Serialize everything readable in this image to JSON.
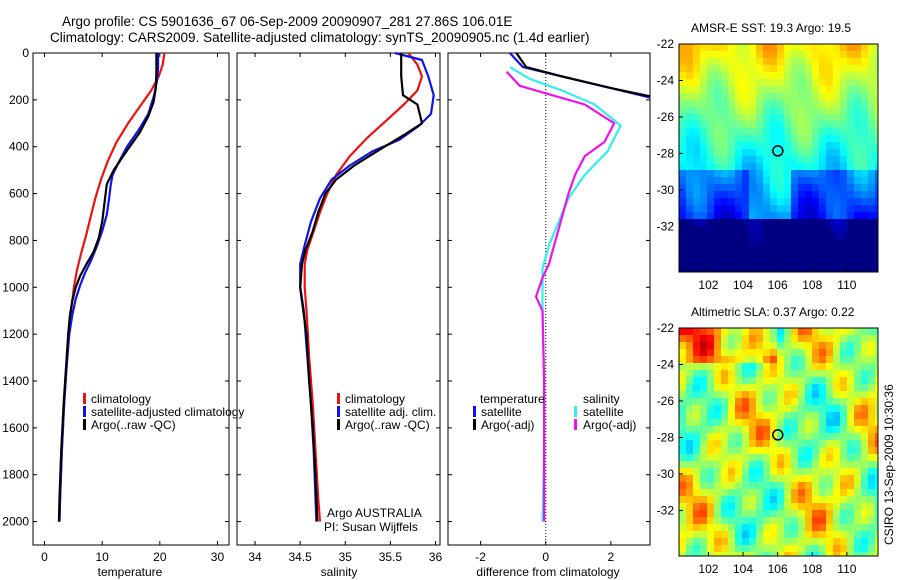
{
  "header": {
    "line1": "Argo profile: CS 5901636_67 06-Sep-2009 20090907_281 27.86S 106.01E",
    "line2": "Climatology: CARS2009. Satellite-adjusted climatology: synTS_20090905.nc (1.4d earlier)"
  },
  "credit": "CSIRO 13-Sep-2009 10:30:36",
  "colors": {
    "red": "#ee1111",
    "blue": "#1111ee",
    "black": "#000000",
    "cyan": "#33eeee",
    "magenta": "#ee11ee"
  },
  "chart_data": [
    {
      "type": "line",
      "id": "temperature",
      "xlabel": "temperature",
      "ylabel": "",
      "xlim": [
        -2,
        32
      ],
      "ylim": [
        0,
        2100
      ],
      "xticks": [
        0,
        10,
        20,
        30
      ],
      "yticks": [
        0,
        200,
        400,
        600,
        800,
        1000,
        1200,
        1400,
        1600,
        1800,
        2000
      ],
      "legend": [
        "climatology",
        "satellite-adjusted climatology",
        "Argo(..raw -QC)"
      ],
      "series": [
        {
          "name": "climatology",
          "color": "red",
          "points": [
            [
              20.8,
              0
            ],
            [
              20.5,
              50
            ],
            [
              19.8,
              100
            ],
            [
              18.5,
              160
            ],
            [
              16.5,
              230
            ],
            [
              14.5,
              300
            ],
            [
              12.5,
              380
            ],
            [
              11,
              460
            ],
            [
              9.8,
              540
            ],
            [
              8.8,
              620
            ],
            [
              8,
              700
            ],
            [
              7.2,
              780
            ],
            [
              6.3,
              860
            ],
            [
              5.6,
              930
            ],
            [
              5.1,
              1000
            ],
            [
              4.6,
              1100
            ],
            [
              4.2,
              1200
            ],
            [
              3.8,
              1350
            ],
            [
              3.4,
              1500
            ],
            [
              3,
              1700
            ],
            [
              2.7,
              1900
            ],
            [
              2.6,
              2000
            ]
          ]
        },
        {
          "name": "satellite-adjusted climatology",
          "color": "blue",
          "points": [
            [
              19.7,
              0
            ],
            [
              19.7,
              60
            ],
            [
              19.5,
              120
            ],
            [
              19,
              180
            ],
            [
              18,
              260
            ],
            [
              16.3,
              330
            ],
            [
              14.3,
              400
            ],
            [
              12.8,
              470
            ],
            [
              11.8,
              520
            ],
            [
              11.5,
              560
            ],
            [
              11.2,
              620
            ],
            [
              10.8,
              690
            ],
            [
              10,
              760
            ],
            [
              9,
              830
            ],
            [
              8,
              890
            ],
            [
              7,
              940
            ],
            [
              6.2,
              990
            ],
            [
              5.4,
              1050
            ],
            [
              4.8,
              1120
            ],
            [
              4.3,
              1200
            ],
            [
              3.8,
              1350
            ],
            [
              3.4,
              1500
            ],
            [
              3,
              1700
            ],
            [
              2.7,
              1900
            ],
            [
              2.6,
              2000
            ]
          ]
        },
        {
          "name": "Argo(..raw -QC)",
          "color": "black",
          "points": [
            [
              19.4,
              0
            ],
            [
              19.4,
              80
            ],
            [
              19.3,
              150
            ],
            [
              18.9,
              210
            ],
            [
              18,
              270
            ],
            [
              16.5,
              340
            ],
            [
              14.2,
              420
            ],
            [
              12,
              500
            ],
            [
              10.8,
              560
            ],
            [
              10.4,
              640
            ],
            [
              10,
              720
            ],
            [
              9.4,
              790
            ],
            [
              8.5,
              850
            ],
            [
              7.3,
              900
            ],
            [
              6.2,
              950
            ],
            [
              5.4,
              1000
            ],
            [
              4.8,
              1060
            ],
            [
              4.4,
              1120
            ],
            [
              4.1,
              1200
            ],
            [
              3.7,
              1350
            ],
            [
              3.3,
              1500
            ],
            [
              2.9,
              1700
            ],
            [
              2.6,
              1900
            ],
            [
              2.5,
              2000
            ]
          ]
        }
      ]
    },
    {
      "type": "line",
      "id": "salinity",
      "xlabel": "salinity",
      "ylabel": "",
      "xlim": [
        33.8,
        36.05
      ],
      "ylim": [
        0,
        2100
      ],
      "xticks": [
        34,
        34.5,
        35,
        35.5,
        36
      ],
      "legend": [
        "climatology",
        "satellite adj. clim.",
        "Argo(..raw -QC)"
      ],
      "annotations": [
        "Argo AUSTRALIA",
        "PI: Susan Wijffels"
      ],
      "series": [
        {
          "name": "climatology",
          "color": "red",
          "points": [
            [
              35.7,
              0
            ],
            [
              35.8,
              50
            ],
            [
              35.85,
              100
            ],
            [
              35.8,
              160
            ],
            [
              35.65,
              220
            ],
            [
              35.45,
              290
            ],
            [
              35.25,
              360
            ],
            [
              35.05,
              440
            ],
            [
              34.9,
              520
            ],
            [
              34.8,
              600
            ],
            [
              34.72,
              680
            ],
            [
              34.65,
              760
            ],
            [
              34.58,
              840
            ],
            [
              34.55,
              900
            ],
            [
              34.55,
              1000
            ],
            [
              34.57,
              1100
            ],
            [
              34.6,
              1300
            ],
            [
              34.64,
              1500
            ],
            [
              34.67,
              1700
            ],
            [
              34.7,
              1900
            ],
            [
              34.72,
              2000
            ]
          ]
        },
        {
          "name": "satellite adj. clim.",
          "color": "blue",
          "points": [
            [
              35.55,
              0
            ],
            [
              35.85,
              30
            ],
            [
              35.92,
              100
            ],
            [
              35.98,
              180
            ],
            [
              35.95,
              260
            ],
            [
              35.82,
              310
            ],
            [
              35.6,
              370
            ],
            [
              35.3,
              420
            ],
            [
              35.05,
              480
            ],
            [
              34.85,
              540
            ],
            [
              34.72,
              620
            ],
            [
              34.62,
              720
            ],
            [
              34.55,
              820
            ],
            [
              34.5,
              900
            ],
            [
              34.5,
              1000
            ],
            [
              34.54,
              1100
            ],
            [
              34.58,
              1300
            ],
            [
              34.62,
              1500
            ],
            [
              34.65,
              1700
            ],
            [
              34.67,
              1900
            ],
            [
              34.68,
              2000
            ]
          ]
        },
        {
          "name": "Argo(..raw -QC)",
          "color": "black",
          "points": [
            [
              35.62,
              0
            ],
            [
              35.62,
              100
            ],
            [
              35.64,
              180
            ],
            [
              35.8,
              220
            ],
            [
              35.85,
              300
            ],
            [
              35.65,
              350
            ],
            [
              35.35,
              420
            ],
            [
              35.1,
              480
            ],
            [
              34.9,
              540
            ],
            [
              34.78,
              600
            ],
            [
              34.7,
              680
            ],
            [
              34.64,
              760
            ],
            [
              34.56,
              840
            ],
            [
              34.52,
              900
            ],
            [
              34.5,
              1000
            ],
            [
              34.52,
              1060
            ],
            [
              34.57,
              1200
            ],
            [
              34.6,
              1400
            ],
            [
              34.64,
              1600
            ],
            [
              34.67,
              1800
            ],
            [
              34.69,
              2000
            ]
          ]
        }
      ]
    },
    {
      "type": "line",
      "id": "difference",
      "xlabel": "difference from climatology",
      "ylabel": "",
      "xlim": [
        -3,
        3.2
      ],
      "ylim": [
        0,
        2100
      ],
      "xticks": [
        -2,
        0,
        2
      ],
      "legend_groups": [
        {
          "title": "temperature",
          "items": [
            "satellite",
            "Argo(-adj)"
          ]
        },
        {
          "title": "salinity",
          "items": [
            "satellite",
            "Argo(-adj)"
          ]
        }
      ],
      "series": [
        {
          "name": "temperature satellite",
          "color": "blue",
          "points": [
            [
              -1.1,
              0
            ],
            [
              -0.7,
              60
            ],
            [
              0.5,
              100
            ],
            [
              2,
              150
            ],
            [
              3.2,
              190
            ]
          ]
        },
        {
          "name": "temperature Argo(-adj)",
          "color": "black",
          "points": [
            [
              -0.9,
              0
            ],
            [
              -0.6,
              60
            ],
            [
              0.5,
              100
            ],
            [
              2,
              150
            ],
            [
              3.2,
              185
            ]
          ]
        },
        {
          "name": "salinity satellite",
          "color": "cyan",
          "points": [
            [
              -1.1,
              60
            ],
            [
              -0.5,
              110
            ],
            [
              0.5,
              160
            ],
            [
              1.5,
              220
            ],
            [
              2.3,
              310
            ],
            [
              1.9,
              420
            ],
            [
              1.2,
              520
            ],
            [
              0.7,
              620
            ],
            [
              0.4,
              720
            ],
            [
              0.1,
              820
            ],
            [
              -0.1,
              920
            ],
            [
              -0.1,
              1100
            ],
            [
              -0.05,
              1400
            ],
            [
              -0.05,
              1700
            ],
            [
              -0.1,
              2000
            ]
          ]
        },
        {
          "name": "salinity Argo(-adj)",
          "color": "magenta",
          "points": [
            [
              -1.2,
              80
            ],
            [
              -0.8,
              140
            ],
            [
              0.2,
              180
            ],
            [
              1.2,
              220
            ],
            [
              2.1,
              300
            ],
            [
              1.8,
              380
            ],
            [
              1.2,
              440
            ],
            [
              0.9,
              520
            ],
            [
              0.7,
              600
            ],
            [
              0.5,
              700
            ],
            [
              0.3,
              800
            ],
            [
              0.1,
              900
            ],
            [
              -0.1,
              960
            ],
            [
              -0.3,
              1040
            ],
            [
              -0.1,
              1100
            ],
            [
              -0.05,
              1400
            ],
            [
              -0.05,
              1700
            ],
            [
              -0.05,
              2000
            ]
          ]
        }
      ]
    },
    {
      "type": "heatmap",
      "id": "sst-map",
      "title": "AMSR-E SST: 19.3 Argo: 19.5",
      "xticks": [
        102,
        104,
        106,
        108,
        110
      ],
      "yticks": [
        -22,
        -24,
        -26,
        -28,
        -30,
        -32
      ],
      "xlim": [
        100.3,
        111.8
      ],
      "ylim": [
        -34.5,
        -22
      ],
      "marker": {
        "lon": 106.01,
        "lat": -27.86
      }
    },
    {
      "type": "heatmap",
      "id": "sla-map",
      "title": "Altimetric SLA: 0.37 Argo: 0.22",
      "xticks": [
        102,
        104,
        106,
        108,
        110
      ],
      "yticks": [
        -22,
        -24,
        -26,
        -28,
        -30,
        -32
      ],
      "xlim": [
        100.3,
        111.8
      ],
      "ylim": [
        -34.5,
        -22
      ],
      "marker": {
        "lon": 106.01,
        "lat": -27.86
      }
    }
  ]
}
